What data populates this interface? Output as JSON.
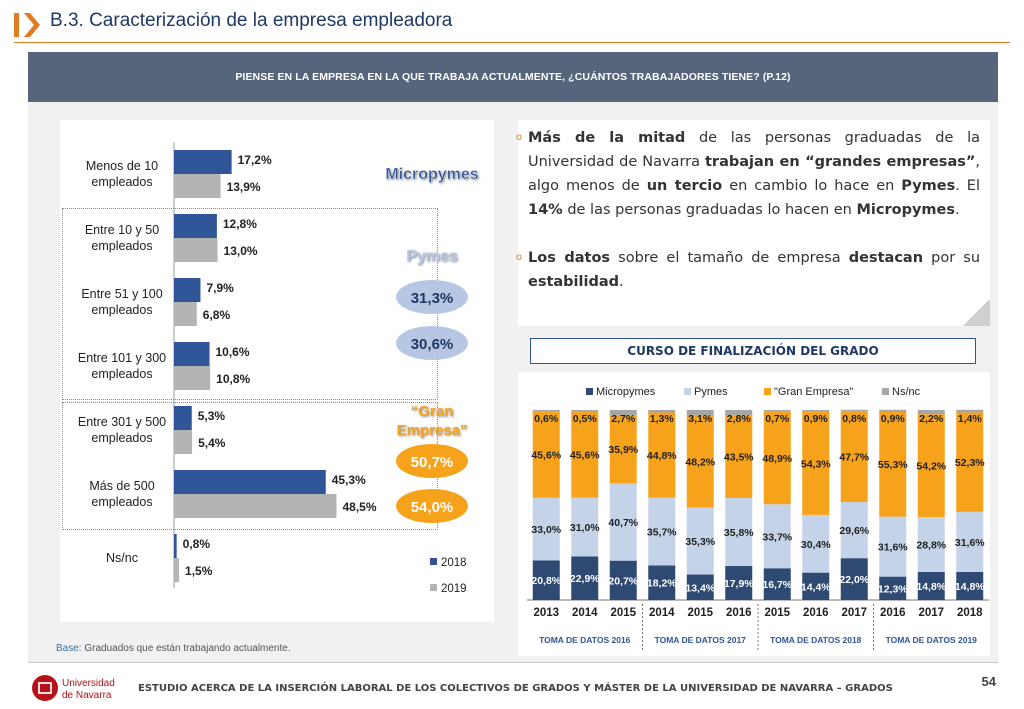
{
  "page": {
    "title": "B.3. Caracterización de la empresa empleadora",
    "question": "PIENSE EN LA EMPRESA EN LA QUE TRABAJA ACTUALMENTE, ¿CUÁNTOS TRABAJADORES TIENE? (P.12)",
    "base_label": "Base:",
    "base_text": " Graduados que están trabajando actualmente.",
    "footer": "ESTUDIO ACERCA DE LA INSERCIÓN LABORAL DE LOS COLECTIVOS DE GRADOS Y MÁSTER DE LA UNIVERSIDAD DE NAVARRA – GRADOS",
    "page_number": "54",
    "logo_line1": "Universidad",
    "logo_line2": "de Navarra"
  },
  "summary": {
    "b1_p1": "Más de la mitad",
    "b1_p2": " de las personas graduadas de la Universidad de Navarra ",
    "b1_p3": "trabajan en “grandes empresas”",
    "b1_p4": ", algo menos de ",
    "b1_p5": "un tercio",
    "b1_p6": " en cambio lo hace en ",
    "b1_p7": "Pymes",
    "b1_p8": ". El ",
    "b1_p9": "14%",
    "b1_p10": " de las personas graduadas lo hacen en ",
    "b1_p11": "Micropymes",
    "b1_p12": ".",
    "b2_p1": "Los datos",
    "b2_p2": " sobre el tamaño de empresa ",
    "b2_p3": "destacan",
    "b2_p4": " por su ",
    "b2_p5": "estabilidad",
    "b2_p6": "."
  },
  "groups": {
    "micropymes": "Micropymes",
    "pymes": "Pymes",
    "pymes_2018": "31,3%",
    "pymes_2019": "30,6%",
    "gran_line1": "“Gran",
    "gran_line2": "Empresa”",
    "gran_2018": "50,7%",
    "gran_2019": "54,0%"
  },
  "chart_data": [
    {
      "type": "bar",
      "orientation": "horizontal",
      "categories": [
        [
          "Menos de 10",
          "empleados"
        ],
        [
          "Entre 10 y 50",
          "empleados"
        ],
        [
          "Entre 51 y 100",
          "empleados"
        ],
        [
          "Entre 101 y 300",
          "empleados"
        ],
        [
          "Entre 301 y 500",
          "empleados"
        ],
        [
          "Más de 500",
          "empleados"
        ],
        [
          "Ns/nc"
        ]
      ],
      "series": [
        {
          "name": "2018",
          "values": [
            17.2,
            12.8,
            7.9,
            10.6,
            5.3,
            45.3,
            0.8
          ],
          "labels": [
            "17,2%",
            "12,8%",
            "7,9%",
            "10,6%",
            "5,3%",
            "45,3%",
            "0,8%"
          ],
          "color": "#2f5597"
        },
        {
          "name": "2019",
          "values": [
            13.9,
            13.0,
            6.8,
            10.8,
            5.4,
            48.5,
            1.5
          ],
          "labels": [
            "13,9%",
            "13,0%",
            "6,8%",
            "10,8%",
            "5,4%",
            "48,5%",
            "1,5%"
          ],
          "color": "#b4b4b4"
        }
      ],
      "legend": "bottom-right",
      "grid": false
    },
    {
      "type": "bar",
      "stacked": true,
      "title": "CURSO DE FINALIZACIÓN DEL GRADO",
      "categories": [
        "2013",
        "2014",
        "2015",
        "2014",
        "2015",
        "2016",
        "2015",
        "2016",
        "2017",
        "2016",
        "2017",
        "2018"
      ],
      "groups": [
        {
          "label": "TOMA DE DATOS 2016",
          "span": 3
        },
        {
          "label": "TOMA DE DATOS 2017",
          "span": 3
        },
        {
          "label": "TOMA DE DATOS 2018",
          "span": 3
        },
        {
          "label": "TOMA DE DATOS 2019",
          "span": 3
        }
      ],
      "series": [
        {
          "name": "Micropymes",
          "color": "#2e4a73",
          "values": [
            20.8,
            22.9,
            20.7,
            18.2,
            13.4,
            17.9,
            16.7,
            14.4,
            22.0,
            12.3,
            14.8,
            14.8
          ],
          "labels": [
            "20,8%",
            "22,9%",
            "20,7%",
            "18,2%",
            "13,4%",
            "17,9%",
            "16,7%",
            "14,4%",
            "22,0%",
            "12,3%",
            "14,8%",
            "14,8%"
          ]
        },
        {
          "name": "Pymes",
          "color": "#c5d3e8",
          "values": [
            33.0,
            31.0,
            40.7,
            35.7,
            35.3,
            35.8,
            33.7,
            30.4,
            29.6,
            31.6,
            28.8,
            31.6
          ],
          "labels": [
            "33,0%",
            "31,0%",
            "40,7%",
            "35,7%",
            "35,3%",
            "35,8%",
            "33,7%",
            "30,4%",
            "29,6%",
            "31,6%",
            "28,8%",
            "31,6%"
          ]
        },
        {
          "name": "\"Gran Empresa\"",
          "color": "#f7a21b",
          "values": [
            45.6,
            45.6,
            35.9,
            44.8,
            48.2,
            43.5,
            48.9,
            54.3,
            47.7,
            55.3,
            54.2,
            52.3
          ],
          "labels": [
            "45,6%",
            "45,6%",
            "35,9%",
            "44,8%",
            "48,2%",
            "43,5%",
            "48,9%",
            "54,3%",
            "47,7%",
            "55,3%",
            "54,2%",
            "52,3%"
          ]
        },
        {
          "name": "Ns/nc",
          "color": "#a6a6a6",
          "values": [
            0.6,
            0.5,
            2.7,
            1.3,
            3.1,
            2.8,
            0.7,
            0.9,
            0.8,
            0.9,
            2.2,
            1.4
          ],
          "labels": [
            "0,6%",
            "0,5%",
            "2,7%",
            "1,3%",
            "3,1%",
            "2,8%",
            "0,7%",
            "0,9%",
            "0,8%",
            "0,9%",
            "2,2%",
            "1,4%"
          ]
        }
      ],
      "ylim": [
        0,
        100
      ],
      "legend": "top",
      "grid": false
    }
  ],
  "colors": {
    "title": "#1f3864",
    "accent": "#e07b1f",
    "question_bar": "#56647c",
    "oval_blue": "#b6c7e3",
    "oval_orange": "#f7a21b"
  }
}
